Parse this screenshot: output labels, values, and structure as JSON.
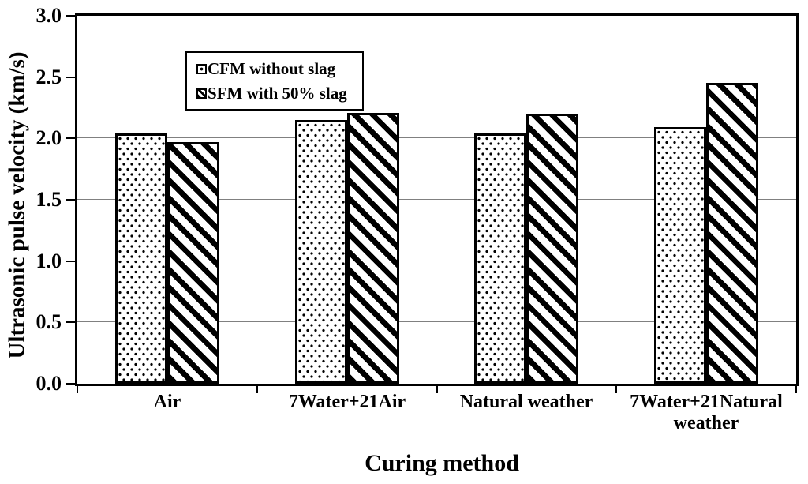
{
  "chart_data": {
    "type": "bar",
    "title": "",
    "xlabel": "Curing method",
    "ylabel": "Ultrasonic pulse velocity (km/s)",
    "ylim": [
      0.0,
      3.0
    ],
    "ytick_labels": [
      "0.0",
      "0.5",
      "1.0",
      "1.5",
      "2.0",
      "2.5",
      "3.0"
    ],
    "grid": "horizontal",
    "legend_position": "inside-top-left",
    "categories": [
      "Air",
      "7Water+21Air",
      "Natural weather",
      "7Water+21Natural weather"
    ],
    "series": [
      {
        "name": "CFM without slag",
        "pattern": "dots",
        "values": [
          2.04,
          2.15,
          2.04,
          2.09
        ]
      },
      {
        "name": "SFM with 50% slag",
        "pattern": "diagonal-stripes",
        "values": [
          1.97,
          2.21,
          2.2,
          2.45
        ]
      }
    ],
    "colors": {
      "bar_fill": "#ffffff",
      "pattern": "#000000",
      "axis": "#000000",
      "gridline": "#808080",
      "background": "#ffffff"
    }
  }
}
